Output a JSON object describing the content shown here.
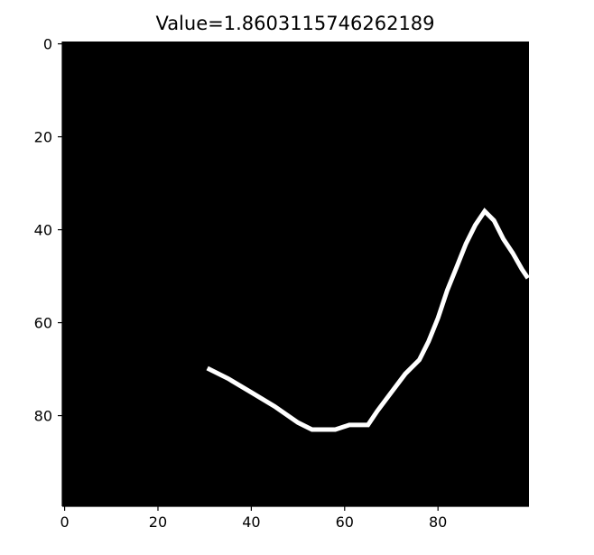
{
  "chart_data": {
    "type": "heatmap",
    "title": "Value=1.8603115746262189",
    "xlabel": "",
    "ylabel": "",
    "xlim": [
      0,
      99
    ],
    "ylim": [
      99,
      0
    ],
    "grid": false,
    "background_color": "#000000",
    "line_color": "#ffffff",
    "x_ticks": [
      0,
      20,
      40,
      60,
      80
    ],
    "y_ticks": [
      0,
      20,
      40,
      60,
      80
    ],
    "points": [
      [
        31,
        70
      ],
      [
        35,
        72
      ],
      [
        40,
        75
      ],
      [
        45,
        78
      ],
      [
        50,
        81.5
      ],
      [
        53,
        83
      ],
      [
        58,
        83
      ],
      [
        61,
        82
      ],
      [
        65,
        82
      ],
      [
        67,
        79
      ],
      [
        70,
        75
      ],
      [
        73,
        71
      ],
      [
        76,
        68
      ],
      [
        78,
        64
      ],
      [
        80,
        59
      ],
      [
        82,
        53
      ],
      [
        84,
        48
      ],
      [
        86,
        43
      ],
      [
        88,
        39
      ],
      [
        90,
        36
      ],
      [
        92,
        38
      ],
      [
        94,
        42
      ],
      [
        96,
        45
      ],
      [
        98,
        48.5
      ],
      [
        99,
        50
      ]
    ]
  }
}
